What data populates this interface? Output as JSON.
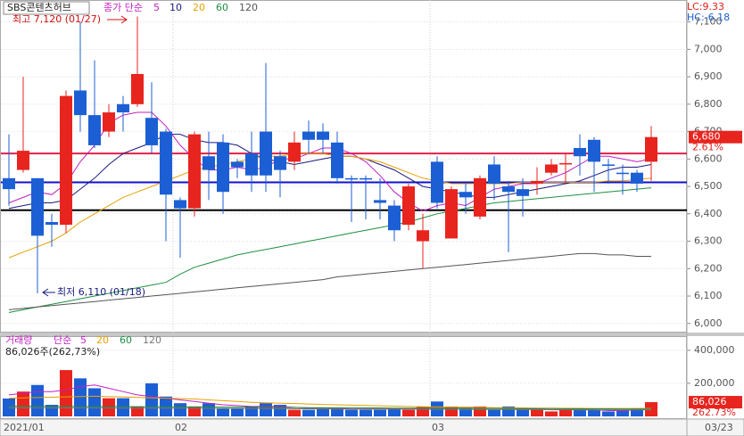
{
  "chart_data": [
    {
      "type": "candlestick",
      "title": "SBS콘텐츠허브",
      "indicator_label": "종가 단순",
      "categories": [
        "2021/01",
        null,
        null,
        null,
        null,
        null,
        null,
        null,
        null,
        null,
        null,
        null,
        "02",
        null,
        null,
        null,
        null,
        null,
        null,
        null,
        null,
        null,
        null,
        null,
        null,
        null,
        null,
        null,
        null,
        null,
        "03",
        null,
        null,
        null,
        null,
        null,
        null,
        null,
        null,
        null,
        null,
        null,
        null,
        null,
        null,
        null
      ],
      "last_date": "03/23",
      "open": [
        6530,
        6560,
        6530,
        6370,
        6360,
        6850,
        6760,
        6700,
        6800,
        6800,
        6750,
        6700,
        6450,
        6420,
        6610,
        6660,
        6590,
        6620,
        6700,
        6610,
        6590,
        6700,
        6700,
        6660,
        6530,
        6530,
        6450,
        6430,
        6360,
        6300,
        6590,
        6310,
        6480,
        6390,
        6580,
        6500,
        6490,
        6510,
        6550,
        6580,
        6640,
        6670,
        6580,
        6550,
        6550,
        6590
      ],
      "high": [
        6690,
        6900,
        6530,
        6400,
        6850,
        7100,
        6960,
        6800,
        6830,
        7120,
        6880,
        6710,
        6460,
        6700,
        6700,
        6690,
        6600,
        6700,
        6950,
        6630,
        6700,
        6740,
        6730,
        6700,
        6540,
        6540,
        6530,
        6450,
        6510,
        6400,
        6610,
        6500,
        6510,
        6540,
        6610,
        6520,
        6530,
        6570,
        6600,
        6620,
        6690,
        6680,
        6600,
        6580,
        6560,
        6720
      ],
      "low": [
        6430,
        6550,
        6110,
        6280,
        6330,
        6700,
        6640,
        6680,
        6700,
        6790,
        6620,
        6300,
        6240,
        6390,
        6450,
        6400,
        6530,
        6480,
        6480,
        6460,
        6560,
        6620,
        6620,
        6510,
        6370,
        6380,
        6380,
        6300,
        6340,
        6200,
        6420,
        6310,
        6400,
        6380,
        6450,
        6260,
        6390,
        6470,
        6540,
        6510,
        6540,
        6480,
        6510,
        6470,
        6480,
        6520
      ],
      "close": [
        6490,
        6630,
        6320,
        6360,
        6830,
        6760,
        6650,
        6770,
        6770,
        6910,
        6650,
        6470,
        6420,
        6690,
        6560,
        6480,
        6570,
        6540,
        6540,
        6560,
        6660,
        6670,
        6670,
        6530,
        6525,
        6525,
        6440,
        6340,
        6500,
        6340,
        6440,
        6490,
        6460,
        6530,
        6510,
        6480,
        6465,
        6520,
        6580,
        6585,
        6610,
        6590,
        6575,
        6545,
        6510,
        6680
      ],
      "up_color": "#e8241e",
      "down_color": "#1c5fd4",
      "series": [
        {
          "name": "5",
          "color": "#c020c0",
          "values": [
            6440,
            6460,
            6480,
            6470,
            6510,
            6590,
            6650,
            6730,
            6760,
            6770,
            6770,
            6720,
            6650,
            6600,
            6560,
            6560,
            6570,
            6560,
            6570,
            6600,
            6600,
            6620,
            6640,
            6640,
            6620,
            6590,
            6540,
            6480,
            6440,
            6410,
            6430,
            6440,
            6430,
            6460,
            6490,
            6500,
            6510,
            6510,
            6530,
            6550,
            6580,
            6610,
            6610,
            6600,
            6590,
            6600
          ]
        },
        {
          "name": "10",
          "color": "#1a1a80",
          "values": [
            6420,
            6430,
            6440,
            6440,
            6450,
            6490,
            6530,
            6580,
            6620,
            6640,
            6660,
            6690,
            6690,
            6670,
            6660,
            6660,
            6650,
            6620,
            6600,
            6590,
            6580,
            6590,
            6600,
            6610,
            6610,
            6600,
            6580,
            6560,
            6530,
            6500,
            6490,
            6480,
            6470,
            6460,
            6460,
            6470,
            6480,
            6490,
            6500,
            6510,
            6520,
            6540,
            6560,
            6570,
            6570,
            6580
          ]
        },
        {
          "name": "20",
          "color": "#e8a000",
          "values": [
            6240,
            6260,
            6280,
            6300,
            6330,
            6370,
            6400,
            6430,
            6460,
            6480,
            6500,
            6520,
            6540,
            6560,
            6570,
            6580,
            6590,
            6600,
            6610,
            6610,
            6620,
            6620,
            6620,
            6610,
            6610,
            6600,
            6590,
            6570,
            6550,
            6530,
            6520,
            6510,
            6510,
            6510,
            6510,
            6510,
            6515,
            6515,
            6515,
            6515,
            6515,
            6515,
            6520,
            6520,
            6525,
            6530
          ]
        },
        {
          "name": "60",
          "color": "#1e9040",
          "values": [
            6040,
            6050,
            6060,
            6070,
            6080,
            6090,
            6100,
            6110,
            6120,
            6130,
            6140,
            6150,
            6180,
            6205,
            6220,
            6235,
            6250,
            6260,
            6270,
            6280,
            6290,
            6300,
            6310,
            6320,
            6330,
            6340,
            6350,
            6360,
            6370,
            6385,
            6400,
            6410,
            6420,
            6430,
            6440,
            6445,
            6450,
            6455,
            6460,
            6465,
            6470,
            6475,
            6480,
            6485,
            6490,
            6495
          ]
        },
        {
          "name": "120",
          "color": "#555555",
          "values": [
            6050,
            6055,
            6060,
            6065,
            6070,
            6075,
            6080,
            6085,
            6090,
            6095,
            6100,
            6105,
            6110,
            6115,
            6120,
            6125,
            6130,
            6135,
            6140,
            6145,
            6150,
            6155,
            6160,
            6170,
            6175,
            6180,
            6185,
            6190,
            6195,
            6200,
            6205,
            6210,
            6215,
            6220,
            6225,
            6230,
            6235,
            6240,
            6245,
            6250,
            6255,
            6255,
            6250,
            6250,
            6245,
            6245
          ]
        }
      ],
      "hlines": [
        {
          "value": 6620,
          "color": "#e0204a"
        },
        {
          "value": 6515,
          "color": "#1010d0"
        },
        {
          "value": 6413,
          "color": "#000000"
        }
      ],
      "annotations": [
        "최고 7,120 (01/27)",
        "최저 6,110 (01/18)"
      ],
      "last_price": {
        "value": 6680,
        "label": "6,680"
      },
      "change_label": "2.61%",
      "lc_label": "LC:9.33",
      "hc_label": "HC:-6.18",
      "ylim": [
        5970,
        7180
      ],
      "yticks": [
        {
          "value": 6000,
          "label": "6,000"
        },
        {
          "value": 6100,
          "label": "6,100"
        },
        {
          "value": 6200,
          "label": "6,200"
        },
        {
          "value": 6300,
          "label": "6,300"
        },
        {
          "value": 6400,
          "label": "6,400"
        },
        {
          "value": 6500,
          "label": "6,500"
        },
        {
          "value": 6600,
          "label": "6,600"
        },
        {
          "value": 6700,
          "label": "6,700"
        },
        {
          "value": 6800,
          "label": "6,800"
        },
        {
          "value": 6900,
          "label": "6,900"
        },
        {
          "value": 7000,
          "label": "7,000"
        },
        {
          "value": 7100,
          "label": "7,100"
        }
      ],
      "grid": true
    },
    {
      "type": "bar",
      "title": "거래량",
      "indicator_label": "단순",
      "legend_value": "86,026주(262,73%)",
      "values": [
        108000,
        150000,
        190000,
        70000,
        280000,
        230000,
        170000,
        110000,
        110000,
        60000,
        200000,
        120000,
        80000,
        60000,
        80000,
        50000,
        50000,
        60000,
        80000,
        70000,
        40000,
        40000,
        50000,
        50000,
        40000,
        40000,
        40000,
        50000,
        40000,
        60000,
        90000,
        60000,
        50000,
        60000,
        40000,
        60000,
        40000,
        40000,
        30000,
        40000,
        40000,
        40000,
        30000,
        40000,
        50000,
        86026
      ],
      "series": [
        {
          "name": "5",
          "color": "#c020c0",
          "values": [
            130000,
            140000,
            150000,
            150000,
            160000,
            180000,
            190000,
            170000,
            150000,
            130000,
            120000,
            110000,
            100000,
            90000,
            80000,
            70000,
            65000,
            60000,
            60000,
            60000,
            55000,
            50000,
            50000,
            50000,
            45000,
            45000,
            45000,
            45000,
            45000,
            50000,
            55000,
            55000,
            55000,
            55000,
            50000,
            50000,
            45000,
            45000,
            40000,
            40000,
            40000,
            40000,
            35000,
            35000,
            40000,
            45000
          ]
        },
        {
          "name": "20",
          "color": "#e8a000",
          "values": [
            110000,
            112000,
            114000,
            116000,
            118000,
            120000,
            122000,
            120000,
            118000,
            115000,
            112000,
            110000,
            108000,
            105000,
            100000,
            95000,
            90000,
            85000,
            82000,
            80000,
            78000,
            75000,
            72000,
            70000,
            68000,
            66000,
            64000,
            62000,
            60000,
            58000,
            57000,
            56000,
            55000,
            54000,
            53000,
            52000,
            51000,
            50000,
            50000,
            49000,
            49000,
            48000,
            48000,
            48000,
            48000,
            48000
          ]
        },
        {
          "name": "60",
          "color": "#1e9040",
          "values": [
            62000,
            62000,
            62000,
            61000,
            61000,
            61000,
            60000,
            60000,
            60000,
            59000,
            59000,
            58000,
            58000,
            57000,
            57000,
            56000,
            56000,
            55000,
            55000,
            54000,
            54000,
            53000,
            53000,
            52000,
            52000,
            51000,
            51000,
            50000,
            50000,
            50000,
            49000,
            49000,
            49000,
            48000,
            48000,
            48000,
            47000,
            47000,
            47000,
            46000,
            46000,
            46000,
            46000,
            45000,
            45000,
            45000
          ]
        },
        {
          "name": "120",
          "color": "#777777",
          "values": [
            52000,
            52000,
            52000,
            51000,
            51000,
            51000,
            51000,
            50000,
            50000,
            50000,
            50000,
            49000,
            49000,
            49000,
            48000,
            48000,
            48000,
            47000,
            47000,
            47000,
            46000,
            46000,
            46000,
            45000,
            45000,
            45000,
            44000,
            44000,
            44000,
            43000,
            43000,
            43000,
            42000,
            42000,
            42000,
            42000,
            41000,
            41000,
            41000,
            41000,
            40000,
            40000,
            40000,
            40000,
            40000,
            40000
          ]
        }
      ],
      "last_value": {
        "value": 86026,
        "label": "86,026"
      },
      "ratio_label": "262.73%",
      "ylim": [
        0,
        480000
      ],
      "yticks": [
        {
          "value": 200000,
          "label": "200,000"
        },
        {
          "value": 400000,
          "label": "400,000"
        }
      ],
      "grid": true
    }
  ]
}
